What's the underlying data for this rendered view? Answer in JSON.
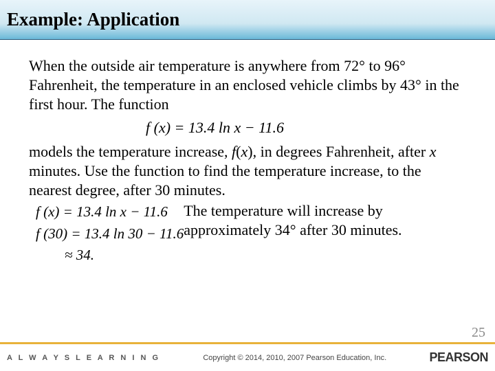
{
  "title": "Example:  Application",
  "para1": "When the outside air temperature is anywhere from 72° to 96° Fahrenheit, the temperature in an enclosed vehicle climbs by 43° in the first hour.  The function",
  "mainFormula": "f (x) = 13.4 ln x − 11.6",
  "para2a": "models the temperature increase, ",
  "para2b": "f",
  "para2c": "(",
  "para2d": "x",
  "para2e": "), in degrees Fahrenheit, after ",
  "para2f": "x",
  "para2g": " minutes.  Use the function to find the temperature increase, to the nearest degree, after 30 minutes.",
  "eq1": "f (x) = 13.4 ln x − 11.6",
  "eq2": "f (30) = 13.4 ln 30 − 11.6",
  "eq3": "        ≈ 34.",
  "answer": "The temperature will increase by approximately 34° after 30 minutes.",
  "alwaysLearning": "A L W A Y S   L E A R N I N G",
  "copyright": "Copyright © 2014, 2010, 2007 Pearson Education, Inc.",
  "brand": "PEARSON",
  "pageNum": "25",
  "colors": {
    "accentLine": "#e8b23a",
    "titleGradTop": "#e8f4fa",
    "titleGradBot": "#6ab8d8"
  }
}
